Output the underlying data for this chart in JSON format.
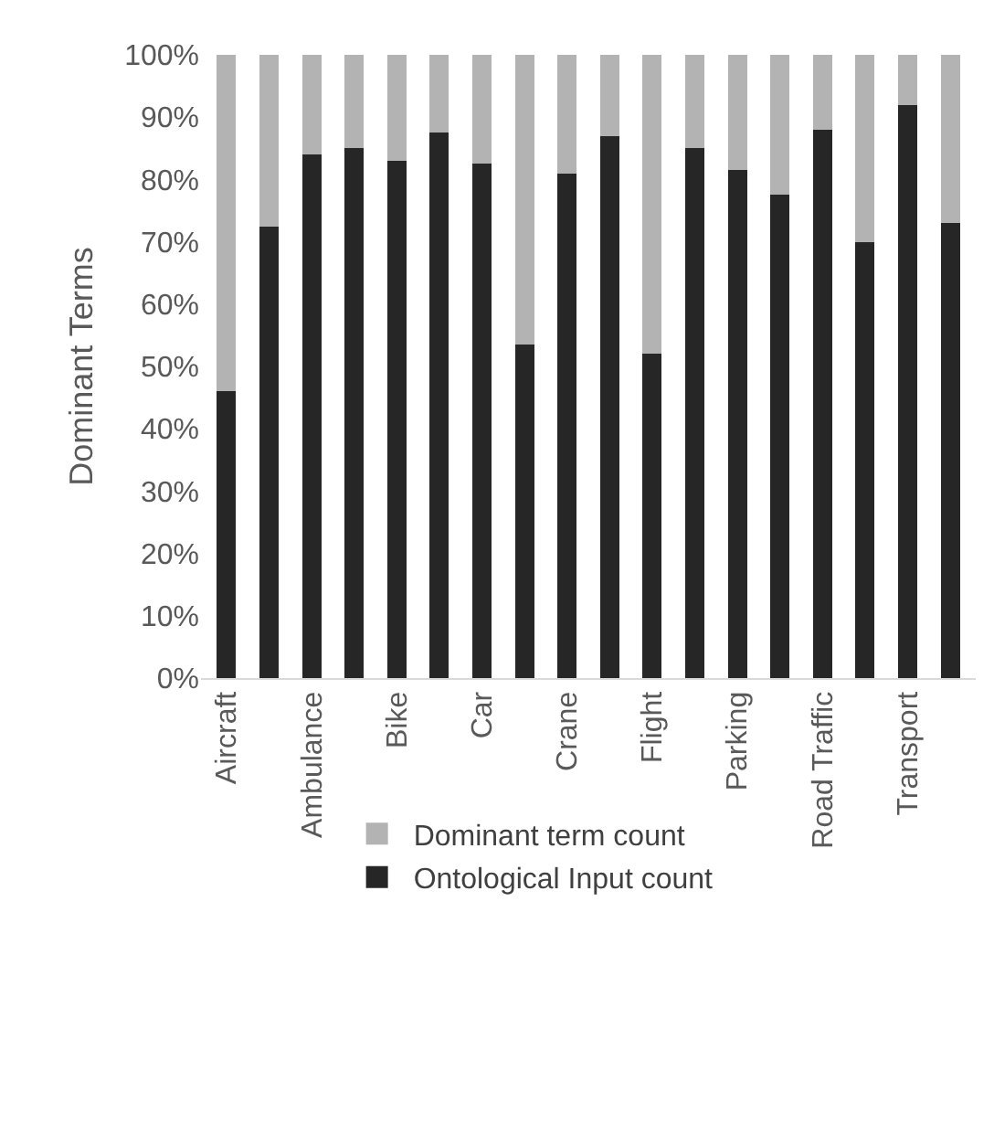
{
  "chart_data": {
    "type": "bar",
    "stacked": true,
    "ylabel": "Dominant Terms",
    "categories": [
      "Aircraft",
      null,
      "Ambulance",
      null,
      "Bike",
      null,
      "Car",
      null,
      "Crane",
      null,
      "Flight",
      null,
      "Parking",
      null,
      "Road Traffic",
      null,
      "Transport",
      null
    ],
    "series": [
      {
        "name": "Ontological Input count",
        "color": "#262626",
        "values": [
          46,
          72.5,
          84,
          85,
          83,
          87.5,
          82.5,
          53.5,
          81,
          87,
          52,
          85,
          81.5,
          77.5,
          88,
          70,
          92,
          73
        ]
      },
      {
        "name": "Dominant term count",
        "color": "#b3b3b3",
        "values": [
          54,
          27.5,
          16,
          15,
          17,
          12.5,
          17.5,
          46.5,
          19,
          13,
          48,
          15,
          18.5,
          22.5,
          12,
          30,
          8,
          27
        ]
      }
    ],
    "ylim": [
      0,
      100
    ],
    "yticks": [
      {
        "value": 0,
        "label": "0%"
      },
      {
        "value": 10,
        "label": "10%"
      },
      {
        "value": 20,
        "label": "20%"
      },
      {
        "value": 30,
        "label": "30%"
      },
      {
        "value": 40,
        "label": "40%"
      },
      {
        "value": 50,
        "label": "50%"
      },
      {
        "value": 60,
        "label": "60%"
      },
      {
        "value": 70,
        "label": "70%"
      },
      {
        "value": 80,
        "label": "80%"
      },
      {
        "value": 90,
        "label": "90%"
      },
      {
        "value": 100,
        "label": "100%"
      }
    ],
    "grid": false,
    "legend": "bottom"
  }
}
